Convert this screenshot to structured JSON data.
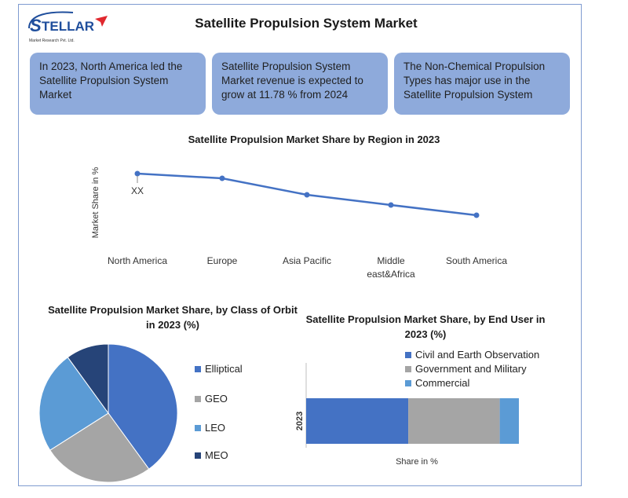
{
  "logo": {
    "brand": "STELLAR",
    "tagline": "Market Research Pvt. Ltd."
  },
  "title": "Satellite Propulsion System Market",
  "callouts": [
    "In 2023, North America led the Satellite Propulsion System Market",
    "Satellite Propulsion System Market revenue is expected to grow at 11.78 % from 2024",
    "The Non-Chemical Propulsion Types has major use in the Satellite Propulsion System"
  ],
  "colors": {
    "callout_bg": "#8eaadb",
    "frame": "#7f9bd0",
    "line": "#4472c4",
    "elliptical": "#4472c4",
    "geo": "#a5a5a5",
    "leo": "#5b9bd5",
    "meo": "#264478",
    "civil": "#4472c4",
    "gov": "#a5a5a5",
    "commercial": "#5b9bd5"
  },
  "chart_data": [
    {
      "type": "line",
      "title": "Satellite Propulsion Market Share by Region in 2023",
      "ylabel": "Market Share in %",
      "xlabel": "",
      "categories": [
        "North America",
        "Europe",
        "Asia Pacific",
        "Middle east&Africa",
        "South America"
      ],
      "values": [
        100,
        94,
        73,
        60,
        47
      ],
      "annotation": "XX",
      "grid": false
    },
    {
      "type": "pie",
      "title": "Satellite Propulsion Market Share, by Class of Orbit in 2023 (%)",
      "labels": [
        "Elliptical",
        "GEO",
        "LEO",
        "MEO"
      ],
      "values": [
        40,
        26,
        24,
        10
      ],
      "legend": "right"
    },
    {
      "type": "bar",
      "orientation": "horizontal-stacked",
      "title": "Satellite Propulsion Market Share, by End User in 2023 (%)",
      "categories": [
        "2023"
      ],
      "xlabel": "Share in %",
      "series": [
        {
          "name": "Civil and Earth Observation",
          "values": [
            48
          ]
        },
        {
          "name": "Government and Military",
          "values": [
            43
          ]
        },
        {
          "name": "Commercial",
          "values": [
            9
          ]
        }
      ],
      "legend": "top-right"
    }
  ]
}
